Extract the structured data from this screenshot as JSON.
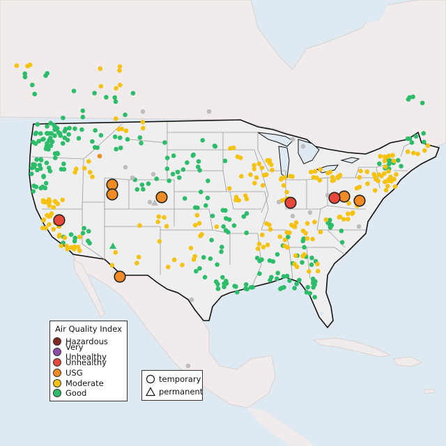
{
  "colors": {
    "ocean": "#dfe9f2",
    "land_us": "#efefef",
    "land_other": "#f1eceb",
    "state_line": "#9a9a9a",
    "border": "#111111",
    "hazardous": "#7e2a22",
    "very_unhealthy": "#8e4ca6",
    "unhealthy": "#e8473b",
    "usg": "#f08a24",
    "moderate": "#f4c20f",
    "good": "#2dbd6a",
    "no_data": "#bdbdbd"
  },
  "legend": {
    "title": "Air Quality Index",
    "items": [
      {
        "key": "hazardous",
        "label": "Hazardous",
        "color": "#7e2a22"
      },
      {
        "key": "very_unhealthy",
        "label": "Very Unhealthy",
        "color": "#8e4ca6"
      },
      {
        "key": "unhealthy",
        "label": "Unhealthy",
        "color": "#e8473b"
      },
      {
        "key": "usg",
        "label": "USG",
        "color": "#f08a24"
      },
      {
        "key": "moderate",
        "label": "Moderate",
        "color": "#f4c20f"
      },
      {
        "key": "good",
        "label": "Good",
        "color": "#2dbd6a"
      }
    ]
  },
  "shape_legend": {
    "temporary": "temporary",
    "permanent": "permanent"
  },
  "icons": [
    "circle-marker-icon",
    "triangle-marker-icon"
  ]
}
